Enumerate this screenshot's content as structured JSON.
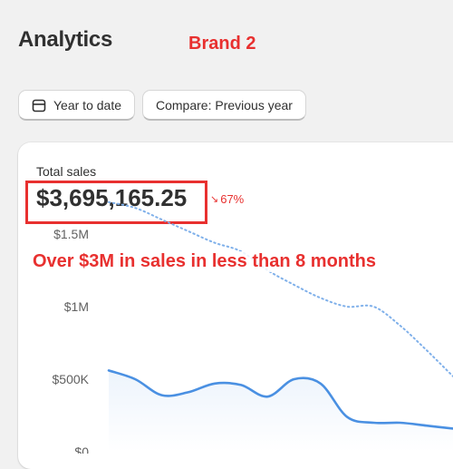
{
  "header": {
    "title": "Analytics",
    "annotation": "Brand 2"
  },
  "toolbar": {
    "date_range_label": "Year to date",
    "compare_label": "Compare: Previous year"
  },
  "metric": {
    "label": "Total sales",
    "value": "$3,695,165.25",
    "change": "67%",
    "change_direction": "down-right",
    "change_color": "#e8302f"
  },
  "annotation": {
    "text": "Over $3M in sales in less than 8 months",
    "color": "#e8302f"
  },
  "chart_data": {
    "type": "line",
    "title": "",
    "ylabel": "",
    "xlabel": "",
    "ylim": [
      0,
      1500000
    ],
    "y_ticks": [
      {
        "value": 1500000,
        "label": "$1.5M"
      },
      {
        "value": 1000000,
        "label": "$1M"
      },
      {
        "value": 500000,
        "label": "$500K"
      },
      {
        "value": 0,
        "label": "$0"
      }
    ],
    "x": [
      0,
      1,
      2,
      3,
      4,
      5,
      6,
      7,
      8,
      9,
      10,
      11,
      12,
      13
    ],
    "series": [
      {
        "style": "solid",
        "color": "#4a90e2",
        "values": [
          560000,
          500000,
          390000,
          410000,
          470000,
          460000,
          380000,
          500000,
          470000,
          240000,
          200000,
          200000,
          180000,
          160000
        ]
      },
      {
        "style": "dotted",
        "color": "#7fb0ea",
        "values": [
          1720000,
          1680000,
          1600000,
          1520000,
          1440000,
          1380000,
          1250000,
          1150000,
          1060000,
          1000000,
          1000000,
          870000,
          700000,
          520000
        ]
      }
    ],
    "grid": false,
    "legend": "none"
  }
}
